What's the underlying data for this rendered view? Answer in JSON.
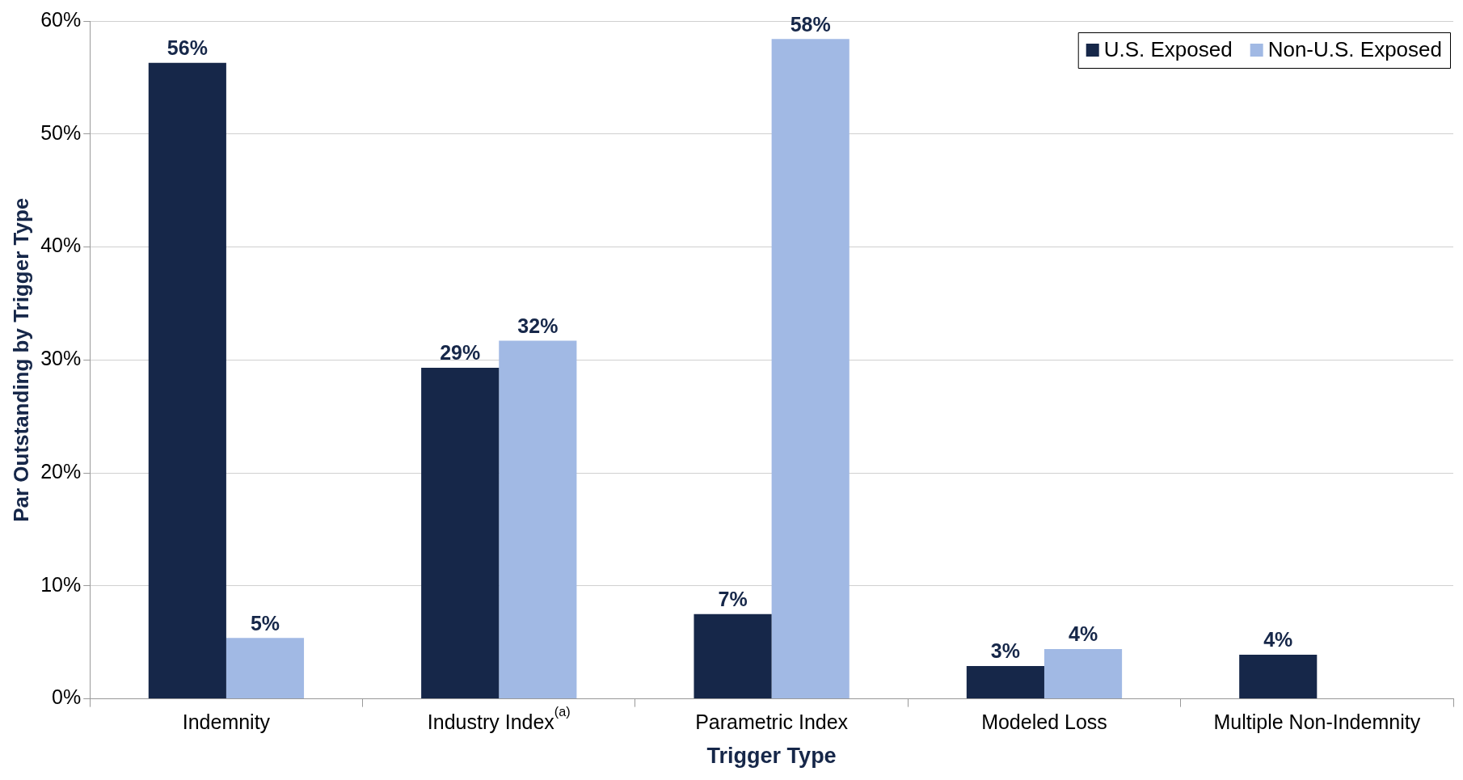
{
  "chart_data": {
    "type": "bar",
    "xlabel": "Trigger Type",
    "ylabel": "Par Outstanding by Trigger Type",
    "categories": [
      "Indemnity",
      "Industry Index$^{(a)}$",
      "Parametric Index",
      "Modeled Loss",
      "Multiple Non-Indemnity"
    ],
    "series": [
      {
        "name": "U.S. Exposed",
        "color": "#162749",
        "values": [
          56.3,
          29.3,
          7.5,
          2.9,
          3.9
        ],
        "value_labels": [
          "56%",
          "29%",
          "7%",
          "3%",
          "4%"
        ]
      },
      {
        "name": "Non-U.S. Exposed",
        "color": "#a1b9e4",
        "values": [
          5.4,
          31.7,
          58.4,
          4.4,
          null
        ],
        "value_labels": [
          "5%",
          "32%",
          "58%",
          "4%",
          null
        ]
      }
    ],
    "ylim": [
      0,
      60
    ],
    "yticks": [
      {
        "value": 0,
        "label": "0%"
      },
      {
        "value": 10,
        "label": "10%"
      },
      {
        "value": 20,
        "label": "20%"
      },
      {
        "value": 30,
        "label": "30%"
      },
      {
        "value": 40,
        "label": "40%"
      },
      {
        "value": 50,
        "label": "50%"
      },
      {
        "value": 60,
        "label": "60%"
      }
    ],
    "grid": "y",
    "legend": "top right"
  }
}
